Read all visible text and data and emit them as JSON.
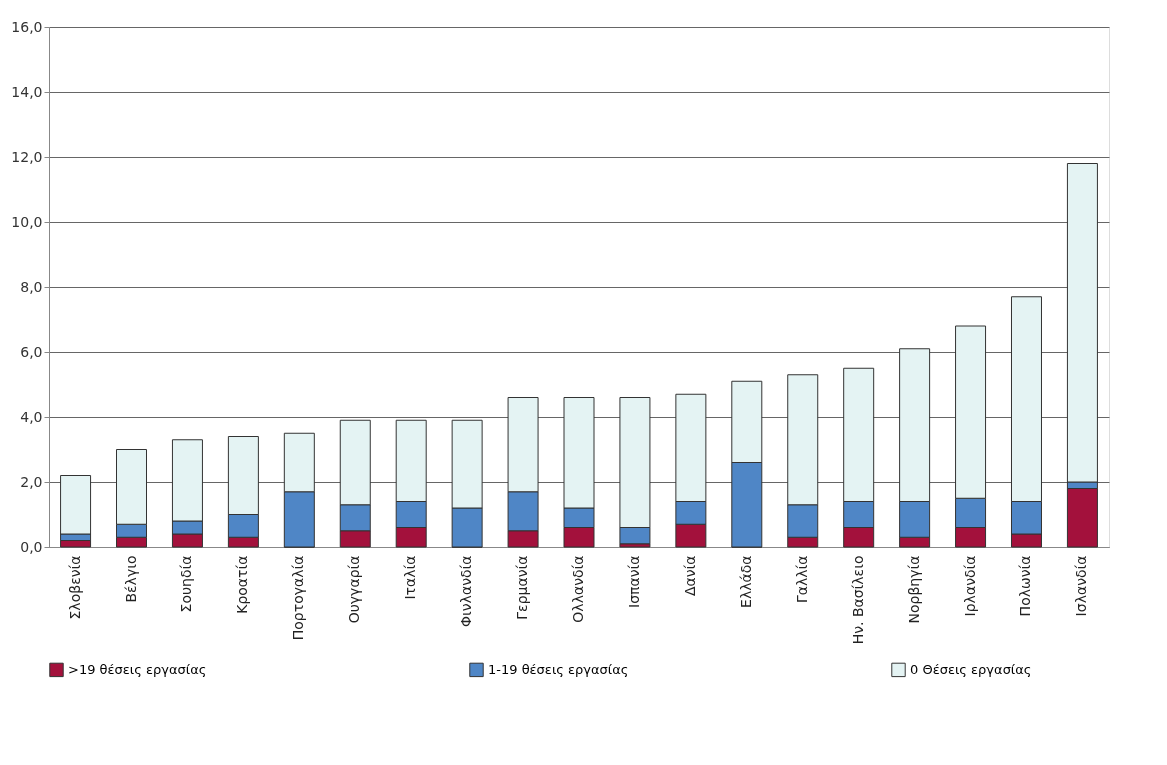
{
  "chart_data": {
    "type": "bar",
    "stacked": true,
    "categories": [
      "Σλοβενία",
      "Βέλγιο",
      "Σουηδία",
      "Κροατία",
      "Πορτογαλία",
      "Ουγγαρία",
      "Ιταλία",
      "Φινλανδία",
      "Γερμανία",
      "Ολλανδία",
      "Ισπανία",
      "Δανία",
      "Ελλάδα",
      "Γαλλία",
      "Ην. Βασίλειο",
      "Νορβηγία",
      "Ιρλανδία",
      "Πολωνία",
      "Ισλανδία"
    ],
    "series": [
      {
        "name": ">19 θέσεις εργασίας",
        "color": "#a3113c",
        "values": [
          0.2,
          0.3,
          0.4,
          0.3,
          0,
          0.5,
          0.6,
          0,
          0.5,
          0.6,
          0.1,
          0.7,
          0,
          0.3,
          0.6,
          0.3,
          0.6,
          0.4,
          1.8
        ]
      },
      {
        "name": "1-19 θέσεις εργασίας",
        "color": "#4f86c6",
        "values": [
          0.2,
          0.4,
          0.4,
          0.7,
          1.7,
          0.8,
          0.8,
          1.2,
          1.2,
          0.6,
          0.5,
          0.7,
          2.6,
          1.0,
          0.8,
          1.1,
          0.9,
          1.0,
          0.2
        ]
      },
      {
        "name": "0 Θέσεις εργασίας",
        "color": "#e4f3f3",
        "values": [
          1.8,
          2.3,
          2.5,
          2.4,
          1.8,
          2.6,
          2.5,
          2.7,
          2.9,
          3.4,
          4.0,
          3.3,
          2.5,
          4.0,
          4.1,
          4.7,
          5.3,
          6.3,
          9.8
        ]
      }
    ],
    "ylim": [
      0,
      16
    ],
    "yticks": [
      {
        "value": 0,
        "label": "0,0"
      },
      {
        "value": 2,
        "label": "2,0"
      },
      {
        "value": 4,
        "label": "4,0"
      },
      {
        "value": 6,
        "label": "6,0"
      },
      {
        "value": 8,
        "label": "8,0"
      },
      {
        "value": 10,
        "label": "10,0"
      },
      {
        "value": 12,
        "label": "12,0"
      },
      {
        "value": 14,
        "label": "14,0"
      },
      {
        "value": 16,
        "label": "16,0"
      }
    ],
    "grid": "y",
    "legend": "bottom"
  }
}
